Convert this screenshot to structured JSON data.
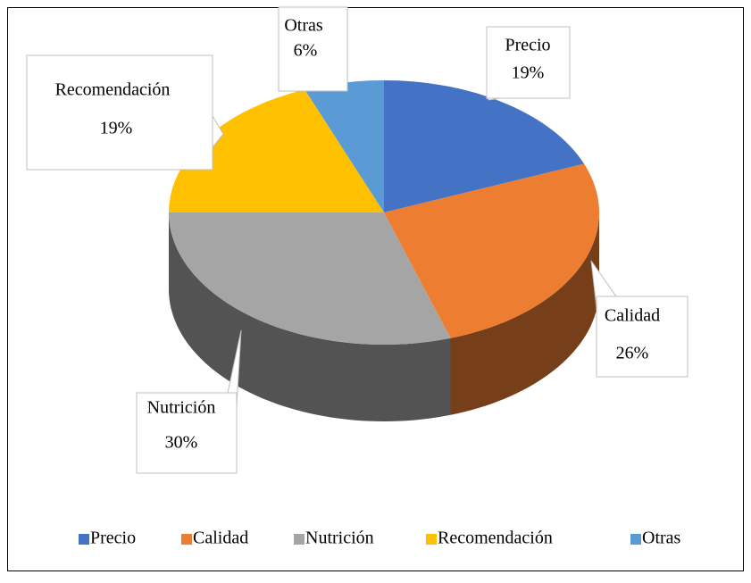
{
  "chart_data": {
    "type": "pie",
    "categories": [
      "Precio",
      "Calidad",
      "Nutrición",
      "Recomendación",
      "Otras"
    ],
    "values": [
      19,
      26,
      30,
      19,
      6
    ],
    "value_labels": [
      "19%",
      "26%",
      "30%",
      "19%",
      "6%"
    ],
    "colors": [
      "#4472c4",
      "#ed7d31",
      "#a5a5a5",
      "#ffc000",
      "#5b9bd5"
    ],
    "legend": "bottom"
  }
}
